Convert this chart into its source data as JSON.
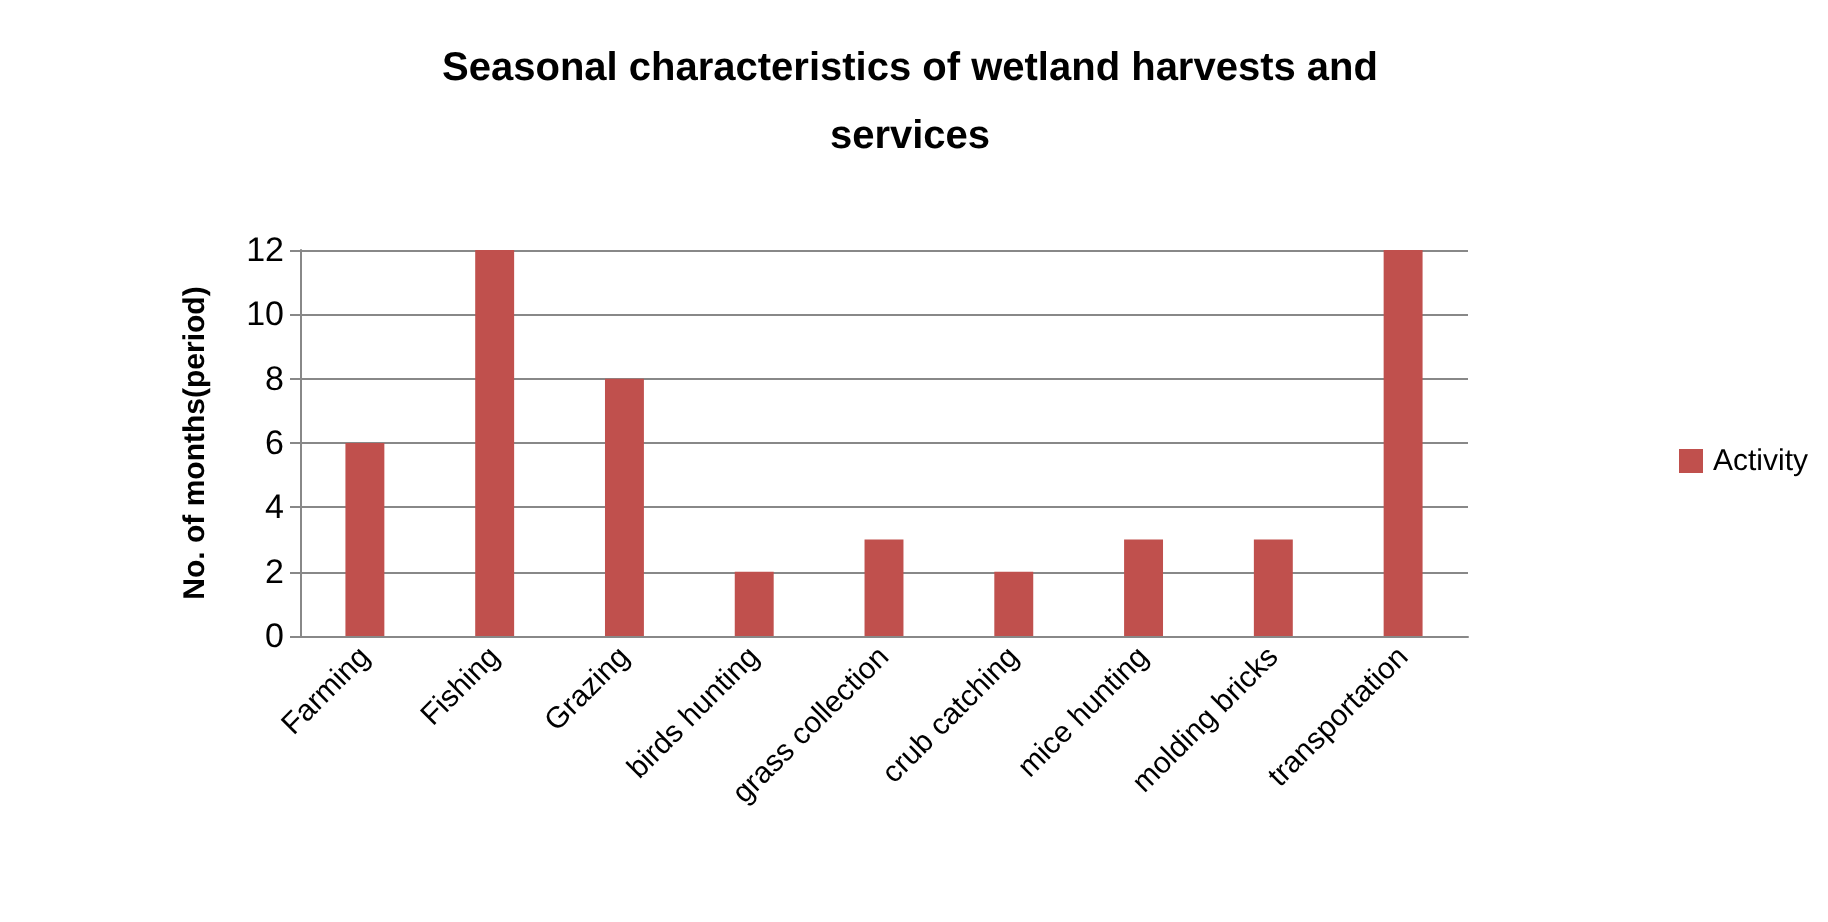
{
  "chart_data": {
    "type": "bar",
    "title": "Seasonal characteristics of wetland harvests and\nservices",
    "ylabel": "No. of months(period)",
    "categories": [
      "Farming",
      "Fishing",
      "Grazing",
      "birds hunting",
      "grass collection",
      "crub catching",
      "mice hunting",
      "molding bricks",
      "transportation"
    ],
    "series": [
      {
        "name": "Activity",
        "color": "#c0504d",
        "values": [
          6,
          12,
          8,
          2,
          3,
          2,
          3,
          3,
          12
        ]
      }
    ],
    "ylim": [
      0,
      12
    ],
    "yticks": [
      0,
      2,
      4,
      6,
      8,
      10,
      12
    ],
    "grid": "y",
    "legend": "right"
  }
}
